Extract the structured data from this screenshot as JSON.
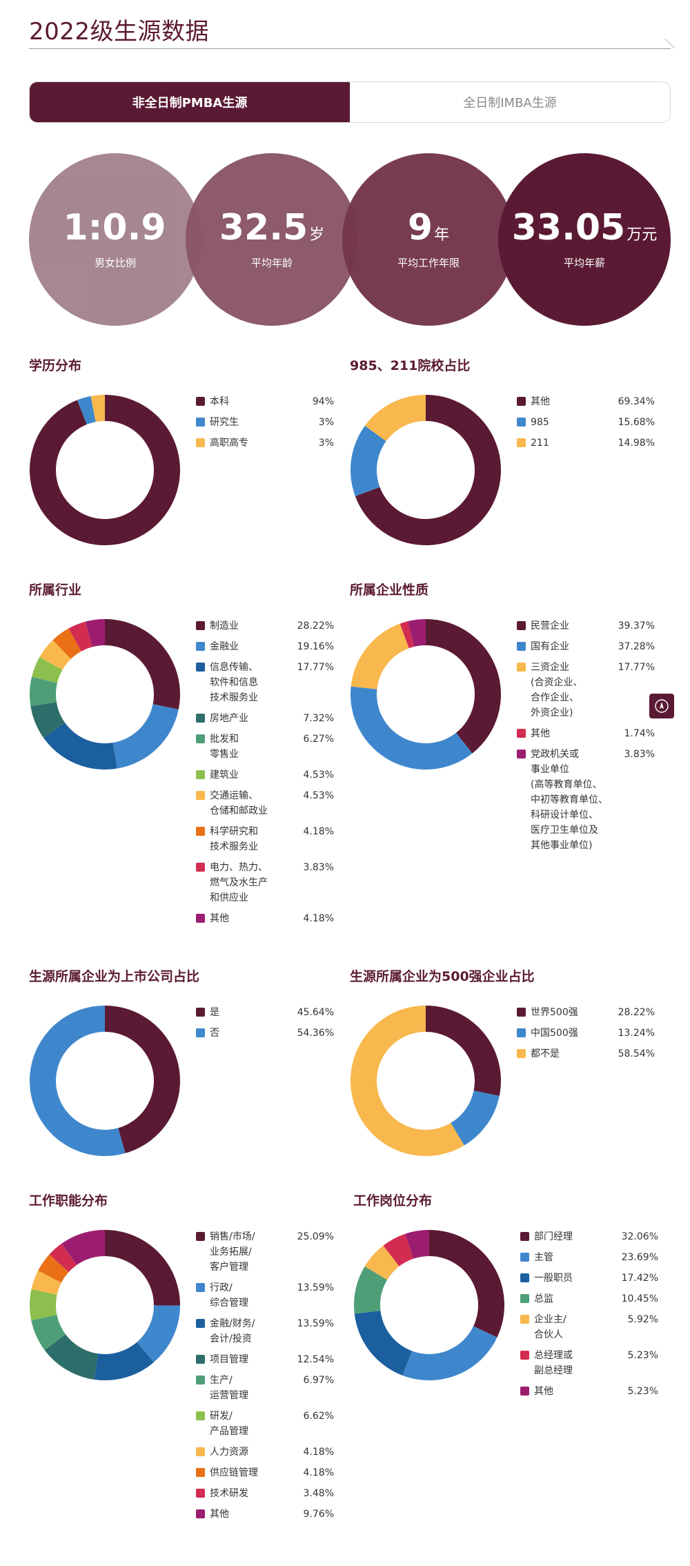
{
  "page": {
    "title": "2022级生源数据"
  },
  "tabs": [
    {
      "label": "非全日制PMBA生源",
      "active": true
    },
    {
      "label": "全日制IMBA生源",
      "active": false
    }
  ],
  "stats": [
    {
      "value": "1:0.9",
      "unit": "",
      "label": "男女比例",
      "color": "#a3838f"
    },
    {
      "value": "32.5",
      "unit": "岁",
      "label": "平均年龄",
      "color": "#8a5667"
    },
    {
      "value": "9",
      "unit": "年",
      "label": "平均工作年限",
      "color": "#74364d"
    },
    {
      "value": "33.05",
      "unit": "万元",
      "label": "平均年薪",
      "color": "#5b1a33"
    }
  ],
  "colors": {
    "brand": "#5b1a33",
    "blue": "#3f87cc",
    "darkblue": "#1b5f9e",
    "teal": "#2e6e6a",
    "green": "#4e9f78",
    "lime": "#8cbf4e",
    "yellow": "#f8b84d",
    "orange": "#ea7016",
    "red": "#d22d51",
    "magenta": "#9c1d70"
  },
  "chart_data": [
    {
      "type": "pie",
      "title": "学历分布",
      "series": [
        {
          "label": "本科",
          "value": 94,
          "display": "94%",
          "color": "#5b1a33"
        },
        {
          "label": "研究生",
          "value": 3,
          "display": "3%",
          "color": "#3f87cc"
        },
        {
          "label": "高职高专",
          "value": 3,
          "display": "3%",
          "color": "#f8b84d"
        }
      ]
    },
    {
      "type": "pie",
      "title": "985、211院校占比",
      "series": [
        {
          "label": "其他",
          "value": 69.34,
          "display": "69.34%",
          "color": "#5b1a33"
        },
        {
          "label": "985",
          "value": 15.68,
          "display": "15.68%",
          "color": "#3f87cc"
        },
        {
          "label": "211",
          "value": 14.98,
          "display": "14.98%",
          "color": "#f8b84d"
        }
      ]
    },
    {
      "type": "pie",
      "title": "所属行业",
      "series": [
        {
          "label": "制造业",
          "value": 28.22,
          "display": "28.22%",
          "color": "#5b1a33"
        },
        {
          "label": "金融业",
          "value": 19.16,
          "display": "19.16%",
          "color": "#3f87cc"
        },
        {
          "label": "信息传输、\n软件和信息\n技术服务业",
          "value": 17.77,
          "display": "17.77%",
          "color": "#1b5f9e"
        },
        {
          "label": "房地产业",
          "value": 7.32,
          "display": "7.32%",
          "color": "#2e6e6a"
        },
        {
          "label": "批发和\n零售业",
          "value": 6.27,
          "display": "6.27%",
          "color": "#4e9f78"
        },
        {
          "label": "建筑业",
          "value": 4.53,
          "display": "4.53%",
          "color": "#8cbf4e"
        },
        {
          "label": "交通运输、\n仓储和邮政业",
          "value": 4.53,
          "display": "4.53%",
          "color": "#f8b84d"
        },
        {
          "label": "科学研究和\n技术服务业",
          "value": 4.18,
          "display": "4.18%",
          "color": "#ea7016"
        },
        {
          "label": "电力、热力、\n燃气及水生产\n和供应业",
          "value": 3.83,
          "display": "3.83%",
          "color": "#d22d51"
        },
        {
          "label": "其他",
          "value": 4.18,
          "display": "4.18%",
          "color": "#9c1d70"
        }
      ]
    },
    {
      "type": "pie",
      "title": "所属企业性质",
      "series": [
        {
          "label": "民营企业",
          "value": 39.37,
          "display": "39.37%",
          "color": "#5b1a33"
        },
        {
          "label": "国有企业",
          "value": 37.28,
          "display": "37.28%",
          "color": "#3f87cc"
        },
        {
          "label": "三资企业\n(合资企业、\n合作企业、\n外资企业)",
          "value": 17.77,
          "display": "17.77%",
          "color": "#f8b84d"
        },
        {
          "label": "其他",
          "value": 1.74,
          "display": "1.74%",
          "color": "#d22d51"
        },
        {
          "label": "党政机关或\n事业单位\n(高等教育单位、\n中初等教育单位、\n科研设计单位、\n医疗卫生单位及\n其他事业单位)",
          "value": 3.83,
          "display": "3.83%",
          "color": "#9c1d70"
        }
      ]
    },
    {
      "type": "pie",
      "title": "生源所属企业为上市公司占比",
      "series": [
        {
          "label": "是",
          "value": 45.64,
          "display": "45.64%",
          "color": "#5b1a33"
        },
        {
          "label": "否",
          "value": 54.36,
          "display": "54.36%",
          "color": "#3f87cc"
        }
      ]
    },
    {
      "type": "pie",
      "title": "生源所属企业为500强企业占比",
      "series": [
        {
          "label": "世界500强",
          "value": 28.22,
          "display": "28.22%",
          "color": "#5b1a33"
        },
        {
          "label": "中国500强",
          "value": 13.24,
          "display": "13.24%",
          "color": "#3f87cc"
        },
        {
          "label": "都不是",
          "value": 58.54,
          "display": "58.54%",
          "color": "#f8b84d"
        }
      ]
    },
    {
      "type": "pie",
      "title": "工作职能分布",
      "series": [
        {
          "label": "销售/市场/\n业务拓展/\n客户管理",
          "value": 25.09,
          "display": "25.09%",
          "color": "#5b1a33"
        },
        {
          "label": "行政/\n综合管理",
          "value": 13.59,
          "display": "13.59%",
          "color": "#3f87cc"
        },
        {
          "label": "金融/财务/\n会计/投资",
          "value": 13.59,
          "display": "13.59%",
          "color": "#1b5f9e"
        },
        {
          "label": "项目管理",
          "value": 12.54,
          "display": "12.54%",
          "color": "#2e6e6a"
        },
        {
          "label": "生产/\n运营管理",
          "value": 6.97,
          "display": "6.97%",
          "color": "#4e9f78"
        },
        {
          "label": "研发/\n产品管理",
          "value": 6.62,
          "display": "6.62%",
          "color": "#8cbf4e"
        },
        {
          "label": "人力资源",
          "value": 4.18,
          "display": "4.18%",
          "color": "#f8b84d"
        },
        {
          "label": "供应链管理",
          "value": 4.18,
          "display": "4.18%",
          "color": "#ea7016"
        },
        {
          "label": "技术研发",
          "value": 3.48,
          "display": "3.48%",
          "color": "#d22d51"
        },
        {
          "label": "其他",
          "value": 9.76,
          "display": "9.76%",
          "color": "#9c1d70"
        }
      ]
    },
    {
      "type": "pie",
      "title": "工作岗位分布",
      "series": [
        {
          "label": "部门经理",
          "value": 32.06,
          "display": "32.06%",
          "color": "#5b1a33"
        },
        {
          "label": "主管",
          "value": 23.69,
          "display": "23.69%",
          "color": "#3f87cc"
        },
        {
          "label": "一般职员",
          "value": 17.42,
          "display": "17.42%",
          "color": "#1b5f9e"
        },
        {
          "label": "总监",
          "value": 10.45,
          "display": "10.45%",
          "color": "#4e9f78"
        },
        {
          "label": "企业主/\n合伙人",
          "value": 5.92,
          "display": "5.92%",
          "color": "#f8b84d"
        },
        {
          "label": "总经理或\n副总经理",
          "value": 5.23,
          "display": "5.23%",
          "color": "#d22d51"
        },
        {
          "label": "其他",
          "value": 5.23,
          "display": "5.23%",
          "color": "#9c1d70"
        }
      ]
    }
  ]
}
